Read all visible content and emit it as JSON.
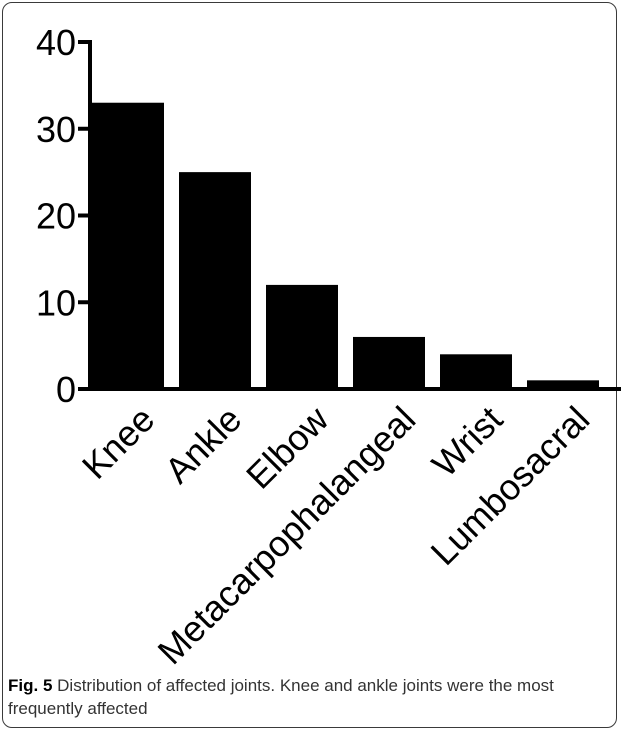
{
  "chart_data": {
    "type": "bar",
    "categories": [
      "Knee",
      "Ankle",
      "Elbow",
      "Metacarpophalangeal",
      "Wrist",
      "Lumbosacral"
    ],
    "values": [
      33,
      25,
      12,
      6,
      4,
      1
    ],
    "ylim": [
      0,
      40
    ],
    "yticks": [
      "0",
      "10",
      "20",
      "30",
      "40"
    ],
    "xlabel": "",
    "ylabel": "",
    "title": "",
    "bar_color": "#000000",
    "grid": false
  },
  "caption": {
    "label": "Fig. 5",
    "text": "Distribution of affected joints. Knee and ankle joints were the most frequently affected"
  }
}
